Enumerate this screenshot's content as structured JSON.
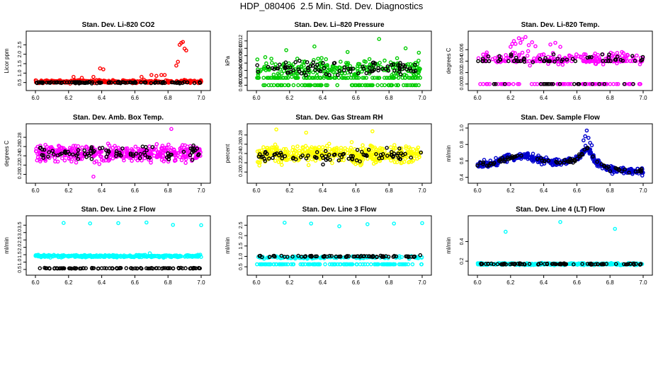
{
  "figure": {
    "title": "HDP_080406  2.5 Min. Std. Dev. Diagnostics"
  },
  "chart_data": [
    {
      "type": "scatter",
      "title": "Stan. Dev. Li-820 CO2",
      "xlabel": "",
      "ylabel": "Licor ppm",
      "xlim": [
        5.97,
        7.03
      ],
      "ylim": [
        0.3,
        3.0
      ],
      "xticks": [
        "6.0",
        "6.2",
        "6.4",
        "6.6",
        "6.8",
        "7.0"
      ],
      "yticks": [
        "0.5",
        "1.0",
        "1.5",
        "2.0",
        "2.5"
      ],
      "series": [
        {
          "color": "#ff0000",
          "base": 0.55,
          "spread": 0.12,
          "count": 320,
          "x": [
            6.23,
            6.28,
            6.35,
            6.39,
            6.41,
            6.64,
            6.7,
            6.73,
            6.76,
            6.78,
            6.85,
            6.86,
            6.87,
            6.88,
            6.89,
            6.9,
            6.91
          ],
          "y": [
            0.8,
            0.75,
            0.8,
            1.25,
            1.2,
            0.8,
            0.9,
            0.85,
            0.9,
            0.9,
            1.4,
            1.6,
            2.5,
            2.6,
            2.65,
            2.3,
            2.2
          ]
        },
        {
          "color": "#000000",
          "base": 0.5,
          "spread": 0.06,
          "count": 110,
          "x": [],
          "y": []
        }
      ]
    },
    {
      "type": "scatter",
      "title": "Stan. Dev. Li–820 Pressure",
      "xlabel": "",
      "ylabel": "kPa",
      "xlim": [
        5.97,
        7.03
      ],
      "ylim": [
        -0.0003,
        0.0135
      ],
      "xticks": [
        "6.0",
        "6.2",
        "6.4",
        "6.6",
        "6.8",
        "7.0"
      ],
      "yticks": [
        "0.000",
        "0.002",
        "0.004",
        "0.006",
        "0.008",
        "0.010",
        "0.012"
      ],
      "series": [
        {
          "color": "#00cc00",
          "base": 0.0045,
          "spread": 0.0035,
          "count": 420,
          "levels": [
            0.0,
            0.002
          ],
          "x": [
            6.18,
            6.35,
            6.55,
            6.74,
            6.9,
            6.98
          ],
          "y": [
            0.0095,
            0.0105,
            0.009,
            0.0125,
            0.01,
            0.0088
          ]
        },
        {
          "color": "#000000",
          "base": 0.0045,
          "spread": 0.0025,
          "count": 90,
          "x": [],
          "y": []
        }
      ]
    },
    {
      "type": "scatter",
      "title": "Stan. Dev. Li-820 Temp.",
      "xlabel": "",
      "ylabel": "degrees C",
      "xlim": [
        5.97,
        7.03
      ],
      "ylim": [
        -0.0004,
        0.0085
      ],
      "xticks": [
        "6.0",
        "6.2",
        "6.4",
        "6.6",
        "6.8",
        "7.0"
      ],
      "yticks": [
        "0.000",
        "0.002",
        "0.004",
        "0.006"
      ],
      "series": [
        {
          "color": "#ff00ff",
          "base": 0.0045,
          "spread": 0.0015,
          "count": 320,
          "levels": [
            0.0,
            0.004
          ],
          "x": [
            6.2,
            6.21,
            6.22,
            6.23,
            6.25,
            6.26,
            6.27,
            6.29,
            6.31,
            6.33,
            6.35,
            6.44,
            6.47,
            6.5
          ],
          "y": [
            0.0065,
            0.007,
            0.0075,
            0.007,
            0.008,
            0.0072,
            0.0078,
            0.0082,
            0.0068,
            0.0073,
            0.0066,
            0.0069,
            0.0072,
            0.0065
          ]
        },
        {
          "color": "#000000",
          "base": 0.0045,
          "spread": 0.001,
          "count": 80,
          "levels": [
            0.0,
            0.004
          ],
          "x": [],
          "y": []
        }
      ]
    },
    {
      "type": "scatter",
      "title": "Stan. Dev. Amb. Box Temp.",
      "xlabel": "",
      "ylabel": "degrees C",
      "xlim": [
        5.97,
        7.03
      ],
      "ylim": [
        0.19,
        0.3
      ],
      "xticks": [
        "6.0",
        "6.2",
        "6.4",
        "6.6",
        "6.8",
        "7.0"
      ],
      "yticks": [
        "0.20",
        "0.22",
        "0.24",
        "0.26",
        "0.28"
      ],
      "series": [
        {
          "color": "#ff00ff",
          "base": 0.245,
          "spread": 0.025,
          "count": 430,
          "x": [
            6.82,
            6.35
          ],
          "y": [
            0.298,
            0.195
          ]
        },
        {
          "color": "#000000",
          "base": 0.245,
          "spread": 0.02,
          "count": 85,
          "x": [],
          "y": []
        }
      ]
    },
    {
      "type": "scatter",
      "title": "Stan. Dev. Gas Stream RH",
      "xlabel": "",
      "ylabel": "percent",
      "xlim": [
        5.97,
        7.03
      ],
      "ylim": [
        0.185,
        0.295
      ],
      "xticks": [
        "6.0",
        "6.2",
        "6.4",
        "6.6",
        "6.8",
        "7.0"
      ],
      "yticks": [
        "0.20",
        "0.22",
        "0.24",
        "0.26",
        "0.28"
      ],
      "series": [
        {
          "color": "#ffff00",
          "base": 0.238,
          "spread": 0.028,
          "count": 440,
          "x": [
            6.12,
            6.3,
            6.7
          ],
          "y": [
            0.292,
            0.285,
            0.288
          ]
        },
        {
          "color": "#000000",
          "base": 0.235,
          "spread": 0.022,
          "count": 85,
          "x": [],
          "y": []
        }
      ]
    },
    {
      "type": "scatter",
      "title": "Stan. Dev. Sample Flow",
      "xlabel": "",
      "ylabel": "ml/min",
      "xlim": [
        5.97,
        7.03
      ],
      "ylim": [
        0.38,
        1.0
      ],
      "xticks": [
        "6.0",
        "6.2",
        "6.4",
        "6.6",
        "6.8",
        "7.0"
      ],
      "yticks": [
        "0.4",
        "0.6",
        "0.8",
        "1.0"
      ],
      "trend": {
        "x": [
          6.0,
          6.1,
          6.2,
          6.3,
          6.4,
          6.5,
          6.6,
          6.66,
          6.72,
          6.8,
          6.9,
          7.0
        ],
        "y": [
          0.55,
          0.58,
          0.64,
          0.66,
          0.6,
          0.58,
          0.62,
          0.76,
          0.58,
          0.5,
          0.48,
          0.47
        ]
      },
      "series": [
        {
          "color": "#0000cc",
          "base": 0.0,
          "spread": 0.06,
          "count": 430,
          "x": [
            6.64,
            6.65,
            6.66,
            6.67,
            6.68,
            6.69
          ],
          "y": [
            0.85,
            0.9,
            0.97,
            0.88,
            0.82,
            0.79
          ]
        },
        {
          "color": "#000000",
          "base": 0.0,
          "spread": 0.04,
          "count": 80,
          "x": [],
          "y": []
        }
      ]
    },
    {
      "type": "scatter",
      "title": "Stan. Dev. Line 2 Flow",
      "xlabel": "",
      "ylabel": "ml/min",
      "xlim": [
        5.97,
        7.03
      ],
      "ylim": [
        0.4,
        3.85
      ],
      "xticks": [
        "6.0",
        "6.2",
        "6.4",
        "6.6",
        "6.8",
        "7.0"
      ],
      "yticks": [
        "0.5",
        "1.0",
        "1.5",
        "2.0",
        "2.5",
        "3.0",
        "3.5"
      ],
      "series": [
        {
          "color": "#00ffff",
          "base": 1.4,
          "spread": 0.12,
          "count": 330,
          "x": [
            6.17,
            6.33,
            6.5,
            6.67,
            6.83,
            7.0,
            6.69
          ],
          "y": [
            3.65,
            3.62,
            3.64,
            3.68,
            3.52,
            3.5,
            1.6
          ]
        },
        {
          "color": "#000000",
          "base": 0.58,
          "spread": 0.04,
          "count": 95,
          "x": [],
          "y": []
        }
      ]
    },
    {
      "type": "scatter",
      "title": "Stan. Dev. Line 3 Flow",
      "xlabel": "",
      "ylabel": "ml/min",
      "xlim": [
        5.97,
        7.03
      ],
      "ylim": [
        0.3,
        2.75
      ],
      "xticks": [
        "6.0",
        "6.2",
        "6.4",
        "6.6",
        "6.8",
        "7.0"
      ],
      "yticks": [
        "0.5",
        "1.0",
        "1.5",
        "2.0",
        "2.5"
      ],
      "series": [
        {
          "color": "#00ffff",
          "base": 0.95,
          "spread": 0.08,
          "count": 260,
          "levels": [
            0.62
          ],
          "x": [
            6.17,
            6.33,
            6.5,
            6.67,
            6.83,
            7.0
          ],
          "y": [
            2.62,
            2.58,
            2.45,
            2.55,
            2.58,
            2.6
          ]
        },
        {
          "color": "#000000",
          "base": 1.0,
          "spread": 0.06,
          "count": 75,
          "x": [],
          "y": []
        }
      ]
    },
    {
      "type": "scatter",
      "title": "Stan. Dev. Line 4 (LT) Flow",
      "xlabel": "",
      "ylabel": "ml/min",
      "xlim": [
        5.97,
        7.03
      ],
      "ylim": [
        0.1,
        0.62
      ],
      "xticks": [
        "6.0",
        "6.2",
        "6.4",
        "6.6",
        "6.8",
        "7.0"
      ],
      "yticks": [
        "0.2",
        "0.4"
      ],
      "series": [
        {
          "color": "#00ffff",
          "base": 0.17,
          "spread": 0.015,
          "count": 330,
          "x": [
            6.17,
            6.5,
            6.83
          ],
          "y": [
            0.5,
            0.6,
            0.53
          ]
        },
        {
          "color": "#000000",
          "base": 0.17,
          "spread": 0.01,
          "count": 85,
          "x": [],
          "y": []
        }
      ]
    }
  ]
}
